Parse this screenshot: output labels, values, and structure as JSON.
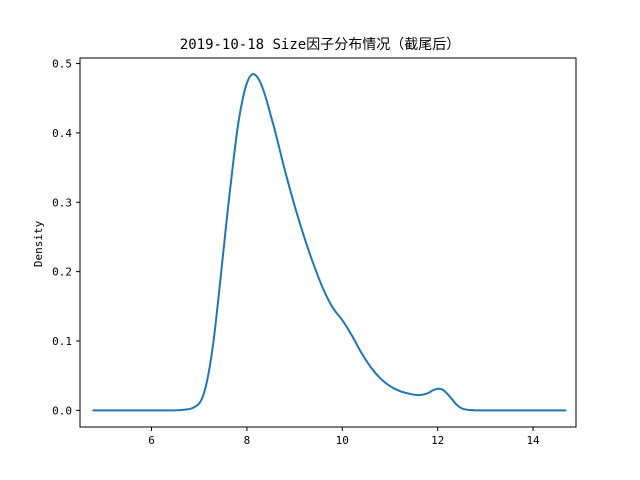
{
  "chart_data": {
    "type": "line",
    "title": "2019-10-18 Size因子分布情况（截尾后）",
    "xlabel": "",
    "ylabel": "Density",
    "xlim": [
      4.5,
      14.9
    ],
    "ylim": [
      -0.024,
      0.508
    ],
    "xticks": [
      6,
      8,
      10,
      12,
      14
    ],
    "yticks": [
      0.0,
      0.1,
      0.2,
      0.3,
      0.4,
      0.5
    ],
    "xtick_labels": [
      "6",
      "8",
      "10",
      "12",
      "14"
    ],
    "ytick_labels": [
      "0.0",
      "0.1",
      "0.2",
      "0.3",
      "0.4",
      "0.5"
    ],
    "grid": false,
    "legend": "none",
    "line_color": "#1f77b4",
    "series": [
      {
        "x": [
          4.78,
          5.5,
          6.0,
          6.5,
          6.7,
          6.85,
          7.0,
          7.1,
          7.2,
          7.3,
          7.4,
          7.5,
          7.6,
          7.7,
          7.8,
          7.9,
          8.0,
          8.1,
          8.2,
          8.3,
          8.4,
          8.5,
          8.6,
          8.8,
          9.0,
          9.2,
          9.4,
          9.6,
          9.8,
          10.0,
          10.2,
          10.4,
          10.6,
          10.8,
          11.0,
          11.2,
          11.4,
          11.6,
          11.8,
          11.9,
          12.0,
          12.1,
          12.2,
          12.3,
          12.4,
          12.5,
          12.6,
          12.8,
          13.0,
          13.5,
          14.0,
          14.68
        ],
        "y": [
          0.0,
          0.0,
          0.0,
          0.0,
          0.001,
          0.003,
          0.01,
          0.025,
          0.055,
          0.1,
          0.16,
          0.225,
          0.29,
          0.35,
          0.405,
          0.445,
          0.472,
          0.484,
          0.482,
          0.47,
          0.45,
          0.425,
          0.4,
          0.345,
          0.295,
          0.25,
          0.21,
          0.175,
          0.148,
          0.13,
          0.108,
          0.083,
          0.062,
          0.046,
          0.035,
          0.028,
          0.024,
          0.022,
          0.025,
          0.029,
          0.031,
          0.03,
          0.024,
          0.016,
          0.008,
          0.003,
          0.001,
          0.0,
          0.0,
          0.0,
          0.0,
          0.0
        ]
      }
    ]
  }
}
